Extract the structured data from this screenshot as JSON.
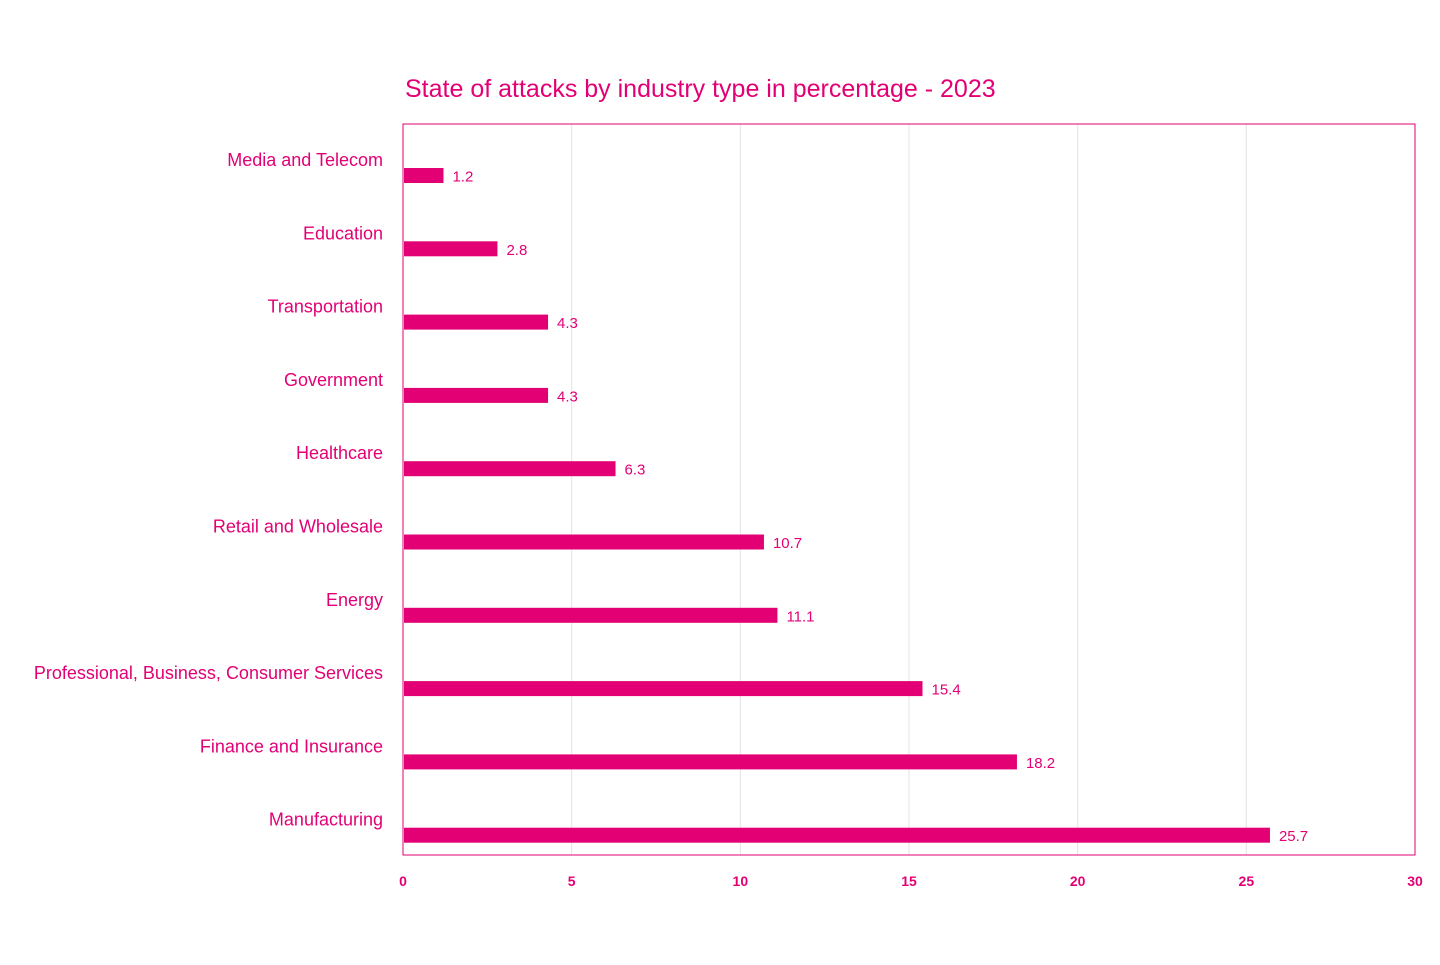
{
  "colors": {
    "accent": "#e20074",
    "grid": "#e3e3e8",
    "background": "#ffffff"
  },
  "chart_data": {
    "type": "bar",
    "orientation": "horizontal",
    "title": "State of attacks by industry type in percentage - 2023",
    "xlabel": "",
    "ylabel": "",
    "categories": [
      "Media and Telecom",
      "Education",
      "Transportation",
      "Government",
      "Healthcare",
      "Retail and Wholesale",
      "Energy",
      "Professional, Business, Consumer Services",
      "Finance and Insurance",
      "Manufacturing"
    ],
    "values": [
      1.2,
      2.8,
      4.3,
      4.3,
      6.3,
      10.7,
      11.1,
      15.4,
      18.2,
      25.7
    ],
    "value_labels": [
      "1.2",
      "2.8",
      "4.3",
      "4.3",
      "6.3",
      "10.7",
      "11.1",
      "15.4",
      "18.2",
      "25.7"
    ],
    "xlim": [
      0,
      30
    ],
    "xticks": [
      0,
      5,
      10,
      15,
      20,
      25,
      30
    ],
    "xtick_labels": [
      "0",
      "5",
      "10",
      "15",
      "20",
      "25",
      "30"
    ],
    "grid": "vertical",
    "legend": "none"
  }
}
